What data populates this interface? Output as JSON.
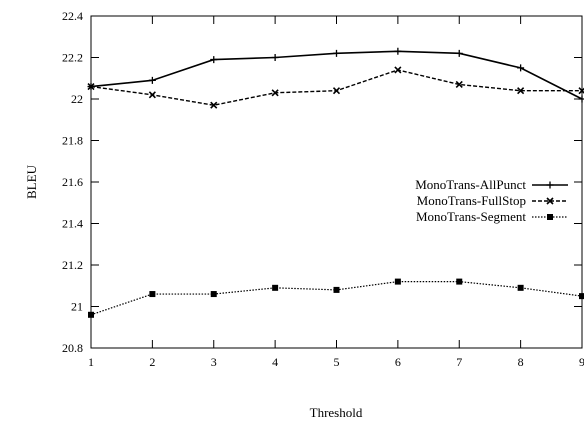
{
  "chart_data": {
    "type": "line",
    "xlabel": "Threshold",
    "ylabel": "BLEU",
    "x": [
      1,
      2,
      3,
      4,
      5,
      6,
      7,
      8,
      9
    ],
    "xlim": [
      1,
      9
    ],
    "ylim": [
      20.8,
      22.4
    ],
    "xticks": [
      "1",
      "2",
      "3",
      "4",
      "5",
      "6",
      "7",
      "8",
      "9"
    ],
    "yticks": [
      "20.8",
      "21",
      "21.2",
      "21.4",
      "21.6",
      "21.8",
      "22",
      "22.2",
      "22.4"
    ],
    "grid": false,
    "legend_position": "right",
    "series": [
      {
        "name": "MonoTrans-AllPunct",
        "style": "solid",
        "marker": "plus",
        "values": [
          22.06,
          22.09,
          22.19,
          22.2,
          22.22,
          22.23,
          22.22,
          22.15,
          22.0
        ]
      },
      {
        "name": "MonoTrans-FullStop",
        "style": "dashed",
        "marker": "cross",
        "values": [
          22.06,
          22.02,
          21.97,
          22.03,
          22.04,
          22.14,
          22.07,
          22.04,
          22.04
        ]
      },
      {
        "name": "MonoTrans-Segment",
        "style": "dotted",
        "marker": "square",
        "values": [
          20.96,
          21.06,
          21.06,
          21.09,
          21.08,
          21.12,
          21.12,
          21.09,
          21.05
        ]
      }
    ]
  }
}
